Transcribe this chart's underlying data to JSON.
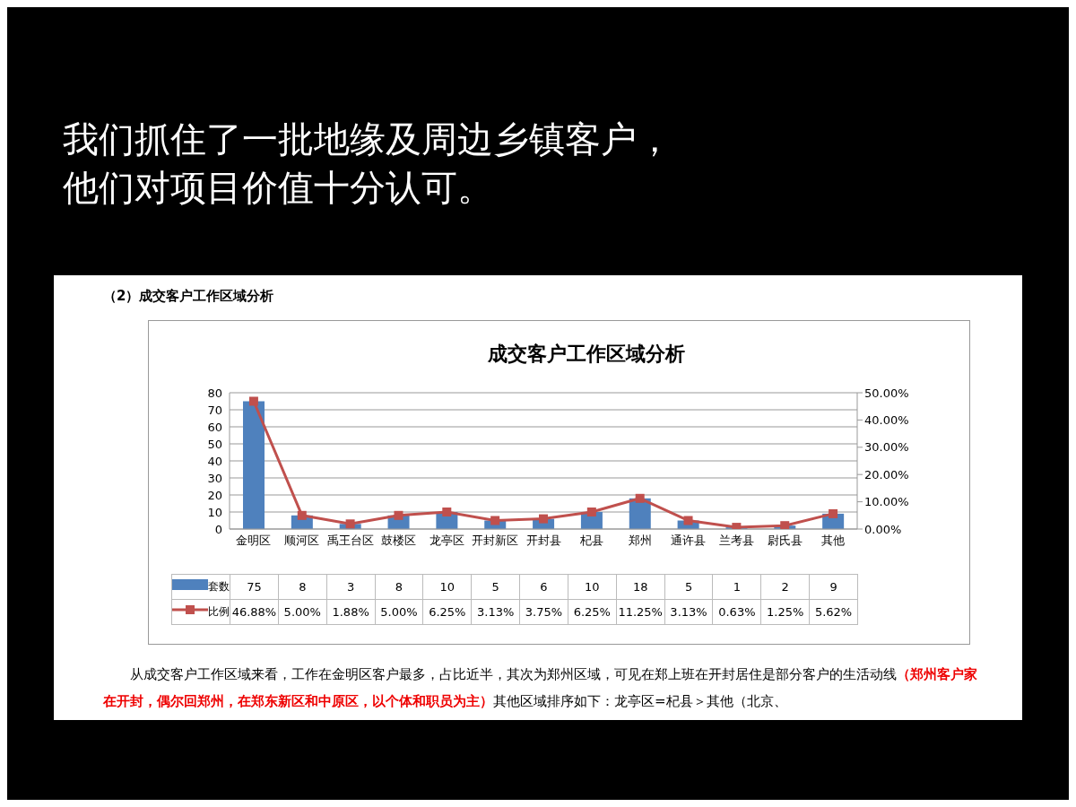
{
  "chart_data": {
    "type": "bar",
    "title": "成交客户工作区域分析",
    "annotations": [
      "我们抓住了一批地缘及周边乡镇客户，",
      "他们对项目价值十分认可。",
      "（2）成交客户工作区域分析",
      "从成交客户工作区域来看，工作在金明区客户最多，占比近半，其次为郑州区域，可见在郑上班在开封居住是部分客户的生活动线",
      "（郑州客户家在开封，偶尔回郑州，在郑东新区和中原区，以个体和职员为主）",
      "其他区域排序如下：龙亭区=杞县＞其他（北京、"
    ],
    "categories": [
      "金明区",
      "顺河区",
      "禹王台区",
      "鼓楼区",
      "龙亭区",
      "开封新区",
      "开封县",
      "杞县",
      "郑州",
      "通许县",
      "兰考县",
      "尉氏县",
      "其他"
    ],
    "series": [
      {
        "name": "套数",
        "color": "#4f81bd",
        "values": [
          75,
          8,
          3,
          8,
          10,
          5,
          6,
          10,
          18,
          5,
          1,
          2,
          9
        ],
        "value_labels": [
          "75",
          "8",
          "3",
          "8",
          "10",
          "5",
          "6",
          "10",
          "18",
          "5",
          "1",
          "2",
          "9"
        ]
      },
      {
        "name": "比例",
        "type": "line",
        "axis": "y2",
        "color": "#c0504d",
        "values": [
          46.88,
          5.0,
          1.88,
          5.0,
          6.25,
          3.13,
          3.75,
          6.25,
          11.25,
          3.13,
          0.63,
          1.25,
          5.62
        ],
        "value_labels": [
          "46.88%",
          "5.00%",
          "1.88%",
          "5.00%",
          "6.25%",
          "3.13%",
          "3.75%",
          "6.25%",
          "11.25%",
          "3.13%",
          "0.63%",
          "1.25%",
          "5.62%"
        ]
      }
    ],
    "ylim": [
      0,
      80
    ],
    "yticks": [
      0,
      10,
      20,
      30,
      40,
      50,
      60,
      70,
      80
    ],
    "y2lim": [
      0,
      50
    ],
    "y2ticks": [
      {
        "value": 0,
        "label": "0.00%"
      },
      {
        "value": 10,
        "label": "10.00%"
      },
      {
        "value": 20,
        "label": "20.00%"
      },
      {
        "value": 30,
        "label": "30.00%"
      },
      {
        "value": 40,
        "label": "40.00%"
      },
      {
        "value": 50,
        "label": "50.00%"
      }
    ],
    "grid": "y",
    "legend": "bottom",
    "marker": "square",
    "line_style": "solid"
  }
}
